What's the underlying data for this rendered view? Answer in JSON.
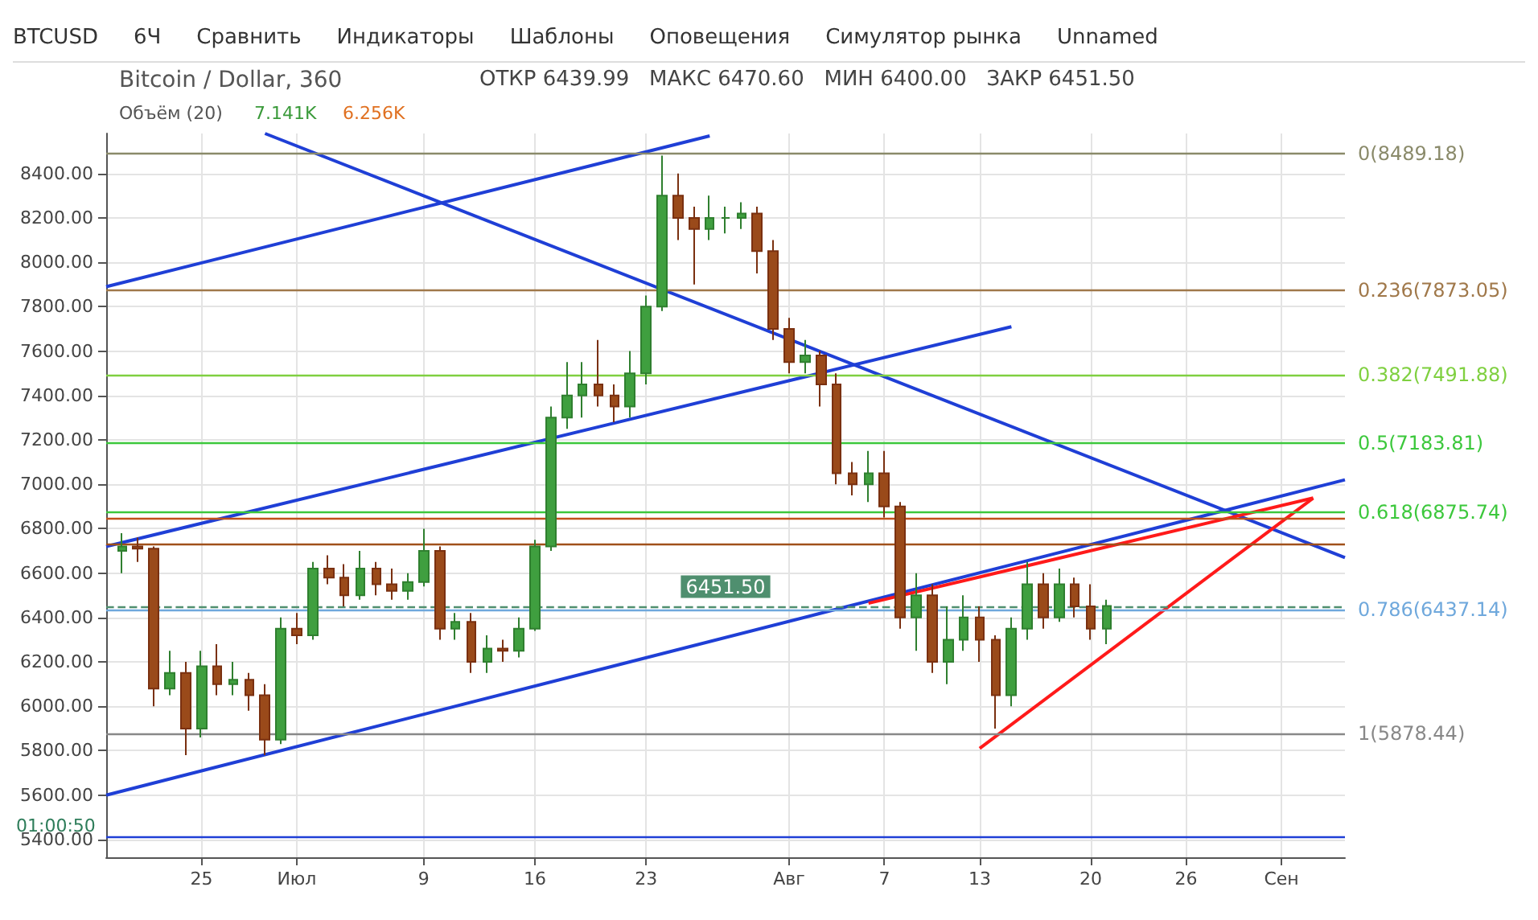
{
  "chart_data": {
    "type": "candlestick",
    "title": "Bitcoin / Dollar, 360",
    "annotations": [
      "BTCUSD",
      "6Ч",
      "Сравнить",
      "Индикаторы",
      "Шаблоны",
      "Оповещения",
      "Симулятор рынка",
      "Unnamed",
      "ОТКР 6439.99",
      "МАКС 6470.60",
      "МИН 6400.00",
      "ЗАКР 6451.50",
      "Объём (20)",
      "7.141K",
      "6.256K",
      "01:00:50"
    ],
    "x": [
      "--06-20",
      "--06-21",
      "--06-22",
      "--06-23",
      "--06-24",
      "--06-25",
      "--06-26",
      "--06-27",
      "--06-28",
      "--06-29",
      "--06-30",
      "--07-01",
      "--07-02",
      "--07-03",
      "--07-04",
      "--07-05",
      "--07-06",
      "--07-07",
      "--07-08",
      "--07-09",
      "--07-10",
      "--07-11",
      "--07-12",
      "--07-13",
      "--07-14",
      "--07-15",
      "--07-16",
      "--07-17",
      "--07-18",
      "--07-19",
      "--07-20",
      "--07-21",
      "--07-22",
      "--07-23",
      "--07-24",
      "--07-25",
      "--07-26",
      "--07-27",
      "--07-28",
      "--07-29",
      "--07-30",
      "--07-31",
      "--08-01",
      "--08-02",
      "--08-03",
      "--08-04",
      "--08-05",
      "--08-06",
      "--08-07",
      "--08-08",
      "--08-09",
      "--08-10",
      "--08-11",
      "--08-12",
      "--08-13",
      "--08-14",
      "--08-15",
      "--08-16",
      "--08-17",
      "--08-18",
      "--08-19",
      "--08-20",
      "--08-21"
    ],
    "ohlc": [
      [
        6700,
        6780,
        6600,
        6720
      ],
      [
        6720,
        6760,
        6650,
        6710
      ],
      [
        6710,
        6720,
        6000,
        6080
      ],
      [
        6080,
        6250,
        6050,
        6150
      ],
      [
        6150,
        6200,
        5780,
        5900
      ],
      [
        5900,
        6250,
        5860,
        6180
      ],
      [
        6180,
        6280,
        6050,
        6100
      ],
      [
        6100,
        6200,
        6050,
        6120
      ],
      [
        6120,
        6150,
        5980,
        6050
      ],
      [
        6050,
        6100,
        5780,
        5850
      ],
      [
        5850,
        6400,
        5830,
        6350
      ],
      [
        6350,
        6420,
        6280,
        6320
      ],
      [
        6320,
        6650,
        6300,
        6620
      ],
      [
        6620,
        6680,
        6550,
        6580
      ],
      [
        6580,
        6640,
        6450,
        6500
      ],
      [
        6500,
        6700,
        6480,
        6620
      ],
      [
        6620,
        6650,
        6500,
        6550
      ],
      [
        6550,
        6620,
        6480,
        6520
      ],
      [
        6520,
        6600,
        6480,
        6560
      ],
      [
        6560,
        6800,
        6540,
        6700
      ],
      [
        6700,
        6720,
        6300,
        6350
      ],
      [
        6350,
        6420,
        6300,
        6380
      ],
      [
        6380,
        6420,
        6150,
        6200
      ],
      [
        6200,
        6320,
        6150,
        6260
      ],
      [
        6260,
        6300,
        6200,
        6250
      ],
      [
        6250,
        6400,
        6220,
        6350
      ],
      [
        6350,
        6750,
        6340,
        6720
      ],
      [
        6720,
        7350,
        6700,
        7300
      ],
      [
        7300,
        7550,
        7250,
        7400
      ],
      [
        7400,
        7550,
        7300,
        7450
      ],
      [
        7450,
        7650,
        7350,
        7400
      ],
      [
        7400,
        7450,
        7280,
        7350
      ],
      [
        7350,
        7600,
        7300,
        7500
      ],
      [
        7500,
        7850,
        7450,
        7800
      ],
      [
        7800,
        8480,
        7780,
        8300
      ],
      [
        8300,
        8400,
        8100,
        8200
      ],
      [
        8200,
        8250,
        7900,
        8150
      ],
      [
        8150,
        8300,
        8100,
        8200
      ],
      [
        8200,
        8250,
        8130,
        8200
      ],
      [
        8200,
        8270,
        8150,
        8220
      ],
      [
        8220,
        8250,
        7950,
        8050
      ],
      [
        8050,
        8100,
        7650,
        7700
      ],
      [
        7700,
        7750,
        7500,
        7550
      ],
      [
        7550,
        7650,
        7500,
        7580
      ],
      [
        7580,
        7600,
        7350,
        7450
      ],
      [
        7450,
        7500,
        7000,
        7050
      ],
      [
        7050,
        7100,
        6950,
        7000
      ],
      [
        7000,
        7150,
        6920,
        7050
      ],
      [
        7050,
        7150,
        6850,
        6900
      ],
      [
        6900,
        6920,
        6350,
        6400
      ],
      [
        6400,
        6600,
        6250,
        6500
      ],
      [
        6500,
        6550,
        6150,
        6200
      ],
      [
        6200,
        6450,
        6100,
        6300
      ],
      [
        6300,
        6500,
        6250,
        6400
      ],
      [
        6400,
        6450,
        6200,
        6300
      ],
      [
        6300,
        6320,
        5900,
        6050
      ],
      [
        6050,
        6400,
        6000,
        6350
      ],
      [
        6350,
        6650,
        6300,
        6550
      ],
      [
        6550,
        6600,
        6350,
        6400
      ],
      [
        6400,
        6620,
        6380,
        6550
      ],
      [
        6550,
        6580,
        6400,
        6450
      ],
      [
        6450,
        6550,
        6300,
        6350
      ],
      [
        6350,
        6480,
        6280,
        6451.5
      ]
    ],
    "series": [
      {
        "type": "line",
        "color": "#1f3fd6",
        "x": [
          "--06-19",
          "--09-05"
        ],
        "values": [
          5600,
          7020
        ]
      },
      {
        "type": "line",
        "color": "#1f3fd6",
        "x": [
          "--06-19",
          "--07-27"
        ],
        "values": [
          7890,
          8569
        ]
      },
      {
        "type": "line",
        "color": "#1f3fd6",
        "x": [
          "--06-19",
          "--08-15"
        ],
        "values": [
          6720,
          7710
        ]
      },
      {
        "type": "line",
        "color": "#1f3fd6",
        "x": [
          "--06-29",
          "--09-05"
        ],
        "values": [
          8580,
          6670
        ]
      },
      {
        "type": "line",
        "color": "#ff1a1a",
        "x": [
          "--08-06",
          "--09-03"
        ],
        "values": [
          6464,
          6938
        ]
      },
      {
        "type": "line",
        "color": "#ff1a1a",
        "x": [
          "--08-13",
          "--09-03"
        ],
        "values": [
          5810,
          6938
        ]
      }
    ],
    "xlim": [
      "--06-19",
      "--09-05"
    ],
    "xticks": [
      {
        "value": "--06-25",
        "label": "25"
      },
      {
        "value": "--07-01",
        "label": "Июл"
      },
      {
        "value": "--07-09",
        "label": "9"
      },
      {
        "value": "--07-16",
        "label": "16"
      },
      {
        "value": "--07-23",
        "label": "23"
      },
      {
        "value": "--08-01",
        "label": "Авг"
      },
      {
        "value": "--08-07",
        "label": "7"
      },
      {
        "value": "--08-13",
        "label": "13"
      },
      {
        "value": "--08-20",
        "label": "20"
      },
      {
        "value": "--08-26",
        "label": "26"
      },
      {
        "value": "--09-01",
        "label": "Сен"
      }
    ],
    "ylim": [
      5320,
      8580
    ],
    "yticks": [
      {
        "value": 5400,
        "label": "5400.00"
      },
      {
        "value": 5600,
        "label": "5600.00"
      },
      {
        "value": 5800,
        "label": "5800.00"
      },
      {
        "value": 6000,
        "label": "6000.00"
      },
      {
        "value": 6200,
        "label": "6200.00"
      },
      {
        "value": 6400,
        "label": "6400.00"
      },
      {
        "value": 6600,
        "label": "6600.00"
      },
      {
        "value": 6800,
        "label": "6800.00"
      },
      {
        "value": 7000,
        "label": "7000.00"
      },
      {
        "value": 7200,
        "label": "7200.00"
      },
      {
        "value": 7400,
        "label": "7400.00"
      },
      {
        "value": 7600,
        "label": "7600.00"
      },
      {
        "value": 7800,
        "label": "7800.00"
      },
      {
        "value": 8000,
        "label": "8000.00"
      },
      {
        "value": 8200,
        "label": "8200.00"
      },
      {
        "value": 8400,
        "label": "8400.00"
      }
    ],
    "ref_lines": [
      {
        "axis": "y",
        "value": 8489.18,
        "label": "0(8489.18)",
        "color": "#8a8a6a"
      },
      {
        "axis": "y",
        "value": 7873.05,
        "label": "0.236(7873.05)",
        "color": "#a0784a"
      },
      {
        "axis": "y",
        "value": 7491.88,
        "label": "0.382(7491.88)",
        "color": "#7fd040"
      },
      {
        "axis": "y",
        "value": 7183.81,
        "label": "0.5(7183.81)",
        "color": "#3cc83c"
      },
      {
        "axis": "y",
        "value": 6875.74,
        "label": "0.618(6875.74)",
        "color": "#3cc83c"
      },
      {
        "axis": "y",
        "value": 6437.14,
        "label": "0.786(6437.14)",
        "color": "#6fa8dc"
      },
      {
        "axis": "y",
        "value": 5878.44,
        "label": "1(5878.44)",
        "color": "#888888"
      },
      {
        "axis": "y",
        "value": 6850,
        "label": null,
        "color": "#c0501a"
      },
      {
        "axis": "y",
        "value": 6730,
        "label": null,
        "color": "#a0501a"
      },
      {
        "axis": "y",
        "value": 5410,
        "label": null,
        "color": "#1f3fd6"
      },
      {
        "axis": "y",
        "value": 6451.5,
        "label": "6451.50",
        "color": "#4f8f6f",
        "line_style": "dashed"
      }
    ],
    "grid": true
  }
}
